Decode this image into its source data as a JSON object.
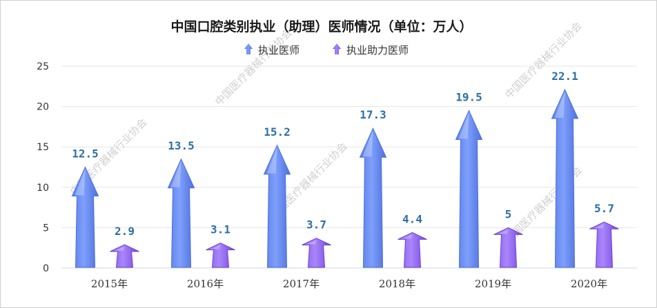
{
  "chart_data": {
    "type": "bar",
    "title": "中国口腔类别执业（助理）医师情况（单位：万人）",
    "categories": [
      "2015年",
      "2016年",
      "2017年",
      "2018年",
      "2019年",
      "2020年"
    ],
    "series": [
      {
        "name": "执业医师",
        "values": [
          12.5,
          13.5,
          15.2,
          17.3,
          19.5,
          22.1
        ],
        "labels": [
          "12.5",
          "13.5",
          "15.2",
          "17.3",
          "19.5",
          "22.1"
        ]
      },
      {
        "name": "执业助力医师",
        "values": [
          2.9,
          3.1,
          3.7,
          4.4,
          5,
          5.7
        ],
        "labels": [
          "2.9",
          "3.1",
          "3.7",
          "4.4",
          "5",
          "5.7"
        ]
      }
    ],
    "yticks": [
      "0",
      "5",
      "10",
      "15",
      "20",
      "25"
    ],
    "ylim": [
      0,
      25
    ],
    "grid": true,
    "legend_position": "top-center",
    "xlabel": "",
    "ylabel": ""
  },
  "watermark": "中国医疗器械行业协会",
  "colors": {
    "series1": "#6e93f7",
    "series1_dark": "#4a6fe0",
    "series1_light": "#a9c0ff",
    "series2": "#9b70f5",
    "series2_dark": "#6d3fd6",
    "series2_light": "#c7a9ff",
    "value_label": "#2e6ea3",
    "grid": "#e6e6e6"
  }
}
